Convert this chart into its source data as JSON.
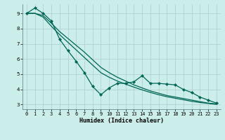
{
  "xlabel": "Humidex (Indice chaleur)",
  "bg_color": "#cceeea",
  "grid_color": "#aacccc",
  "line_color": "#006655",
  "xlim": [
    -0.5,
    23.5
  ],
  "ylim": [
    2.7,
    9.6
  ],
  "line1_x": [
    0,
    1,
    2,
    3,
    4,
    5,
    6,
    7,
    8,
    9,
    10,
    11,
    12,
    13,
    14,
    15,
    16,
    17,
    18,
    19,
    20,
    21,
    22,
    23
  ],
  "line1_y": [
    9.0,
    9.35,
    9.0,
    8.5,
    7.3,
    6.55,
    5.85,
    5.1,
    4.2,
    3.65,
    4.1,
    4.4,
    4.4,
    4.5,
    4.9,
    4.4,
    4.4,
    4.35,
    4.3,
    4.0,
    3.8,
    3.5,
    3.3,
    3.1
  ],
  "line2_x": [
    0,
    1,
    2,
    3,
    4,
    5,
    6,
    7,
    8,
    9,
    10,
    11,
    12,
    13,
    14,
    15,
    16,
    17,
    18,
    19,
    20,
    21,
    22,
    23
  ],
  "line2_y": [
    9.0,
    9.0,
    8.85,
    8.35,
    7.8,
    7.35,
    6.9,
    6.45,
    5.95,
    5.45,
    5.1,
    4.8,
    4.55,
    4.3,
    4.1,
    3.9,
    3.75,
    3.6,
    3.5,
    3.4,
    3.3,
    3.2,
    3.1,
    3.05
  ],
  "line3_x": [
    0,
    1,
    2,
    3,
    4,
    5,
    6,
    7,
    8,
    9,
    10,
    11,
    12,
    13,
    14,
    15,
    16,
    17,
    18,
    19,
    20,
    21,
    22,
    23
  ],
  "line3_y": [
    9.0,
    9.0,
    8.75,
    8.15,
    7.6,
    7.1,
    6.6,
    6.1,
    5.6,
    5.1,
    4.8,
    4.55,
    4.35,
    4.15,
    3.97,
    3.8,
    3.65,
    3.52,
    3.42,
    3.32,
    3.22,
    3.14,
    3.08,
    3.02
  ],
  "ytick_values": [
    3,
    4,
    5,
    6,
    7,
    8,
    9
  ],
  "tick_fontsize": 5.0,
  "label_fontsize": 6.0,
  "linewidth": 0.9,
  "markersize": 2.2
}
